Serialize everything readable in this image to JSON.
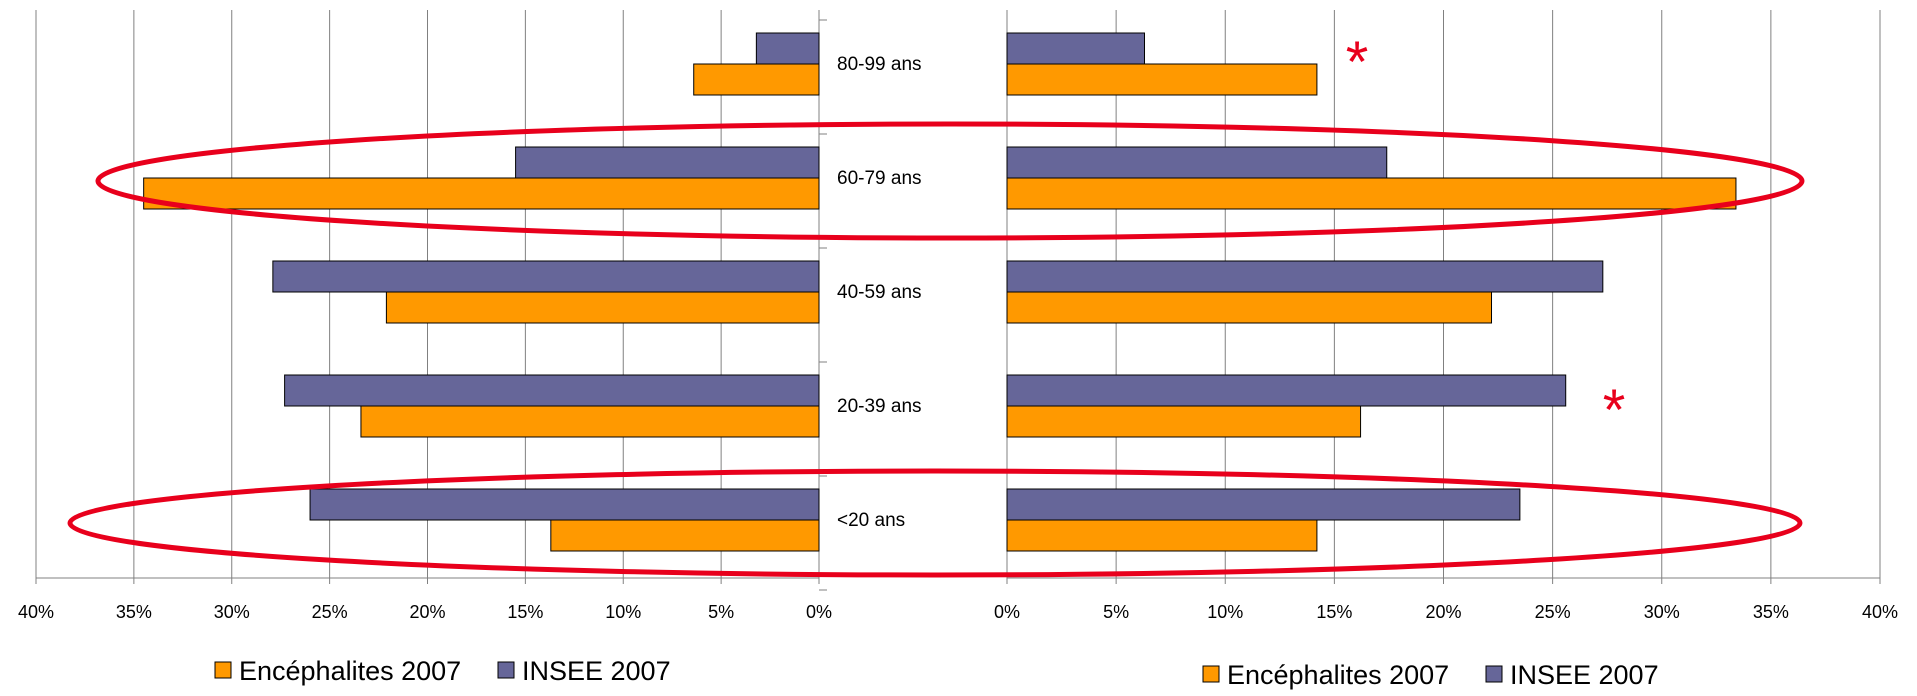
{
  "colors": {
    "encephalites": "#FF9900",
    "insee": "#666699",
    "highlight": "#E8001C",
    "grid": "#808080"
  },
  "chart_data": [
    {
      "type": "bar",
      "orientation": "horizontal",
      "direction": "left",
      "categories": [
        "80-99 ans",
        "60-79 ans",
        "40-59 ans",
        "20-39 ans",
        "<20 ans"
      ],
      "series": [
        {
          "name": "INSEE 2007",
          "values": [
            3.2,
            15.5,
            27.9,
            27.3,
            26.0
          ]
        },
        {
          "name": "Encéphalites 2007",
          "values": [
            6.4,
            34.5,
            22.1,
            23.4,
            13.7
          ]
        }
      ],
      "xlim": [
        0,
        40
      ],
      "xticks": [
        "40%",
        "35%",
        "30%",
        "25%",
        "20%",
        "15%",
        "10%",
        "5%",
        "0%"
      ],
      "grid": true,
      "legend": [
        "Encéphalites 2007",
        "INSEE 2007"
      ],
      "legend_position": "bottom"
    },
    {
      "type": "bar",
      "orientation": "horizontal",
      "direction": "right",
      "categories": [
        "80-99 ans",
        "60-79 ans",
        "40-59 ans",
        "20-39 ans",
        "<20 ans"
      ],
      "series": [
        {
          "name": "INSEE 2007",
          "values": [
            6.3,
            17.4,
            27.3,
            25.6,
            23.5
          ]
        },
        {
          "name": "Encéphalites 2007",
          "values": [
            14.2,
            33.4,
            22.2,
            16.2,
            14.2
          ]
        }
      ],
      "xlim": [
        0,
        40
      ],
      "xticks": [
        "0%",
        "5%",
        "10%",
        "15%",
        "20%",
        "25%",
        "30%",
        "35%",
        "40%"
      ],
      "grid": true,
      "legend": [
        "Encéphalites 2007",
        "INSEE 2007"
      ],
      "legend_position": "bottom"
    }
  ],
  "annotations": {
    "stars": [
      "*",
      "*"
    ],
    "highlighted_groups": [
      "60-79 ans",
      "<20 ans"
    ]
  }
}
